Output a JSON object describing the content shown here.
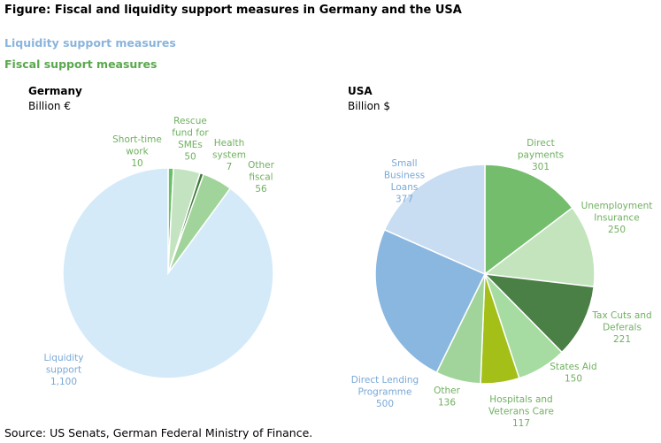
{
  "title": "Figure: Fiscal and liquidity support measures in Germany and the USA",
  "legend": {
    "liquidity": "Liquidity support measures",
    "fiscal": "Fiscal support measures"
  },
  "colors": {
    "liquidity_legend": "#8ab4dc",
    "fiscal_legend": "#5aa84e",
    "liquidity_label": "#7aa8d6",
    "fiscal_label": "#6fb05f"
  },
  "source": "Source: US Senats, German Federal Ministry of Finance.",
  "chart_data": [
    {
      "type": "pie",
      "title": "Germany",
      "unit": "Billion €",
      "slices": [
        {
          "label": [
            "Short-time",
            "work"
          ],
          "value": 10,
          "color": "#6abf69",
          "kind": "fiscal"
        },
        {
          "label": [
            "Rescue",
            "fund for",
            "SMEs"
          ],
          "value": 50,
          "color": "#c4e3c0",
          "kind": "fiscal"
        },
        {
          "label": [
            "Health",
            "system"
          ],
          "value": 7,
          "color": "#3f7a3a",
          "kind": "fiscal"
        },
        {
          "label": [
            "Other",
            "fiscal"
          ],
          "value": 56,
          "color": "#a1d49a",
          "kind": "fiscal"
        },
        {
          "label": [
            "Liquidity",
            "support"
          ],
          "value": 1100,
          "display": "1,100",
          "color": "#d4eaf9",
          "kind": "liquidity"
        }
      ]
    },
    {
      "type": "pie",
      "title": "USA",
      "unit": "Billion $",
      "slices": [
        {
          "label": [
            "Direct",
            "payments"
          ],
          "value": 301,
          "color": "#74bd6c",
          "kind": "fiscal"
        },
        {
          "label": [
            "Unemployment",
            "Insurance"
          ],
          "value": 250,
          "color": "#c3e4bd",
          "kind": "fiscal"
        },
        {
          "label": [
            "Tax Cuts and",
            "Deferals"
          ],
          "value": 221,
          "color": "#4a7f45",
          "kind": "fiscal"
        },
        {
          "label": [
            "States Aid"
          ],
          "value": 150,
          "color": "#a6dba1",
          "kind": "fiscal"
        },
        {
          "label": [
            "Hospitals and",
            "Veterans Care"
          ],
          "value": 117,
          "color": "#a3bf18",
          "kind": "fiscal"
        },
        {
          "label": [
            "Other"
          ],
          "value": 136,
          "color": "#a0d49a",
          "kind": "fiscal"
        },
        {
          "label": [
            "Direct Lending",
            "Programme"
          ],
          "value": 500,
          "color": "#8ab7e0",
          "kind": "liquidity"
        },
        {
          "label": [
            "Small",
            "Business",
            "Loans"
          ],
          "value": 377,
          "color": "#c8ddf2",
          "kind": "liquidity"
        }
      ]
    }
  ]
}
